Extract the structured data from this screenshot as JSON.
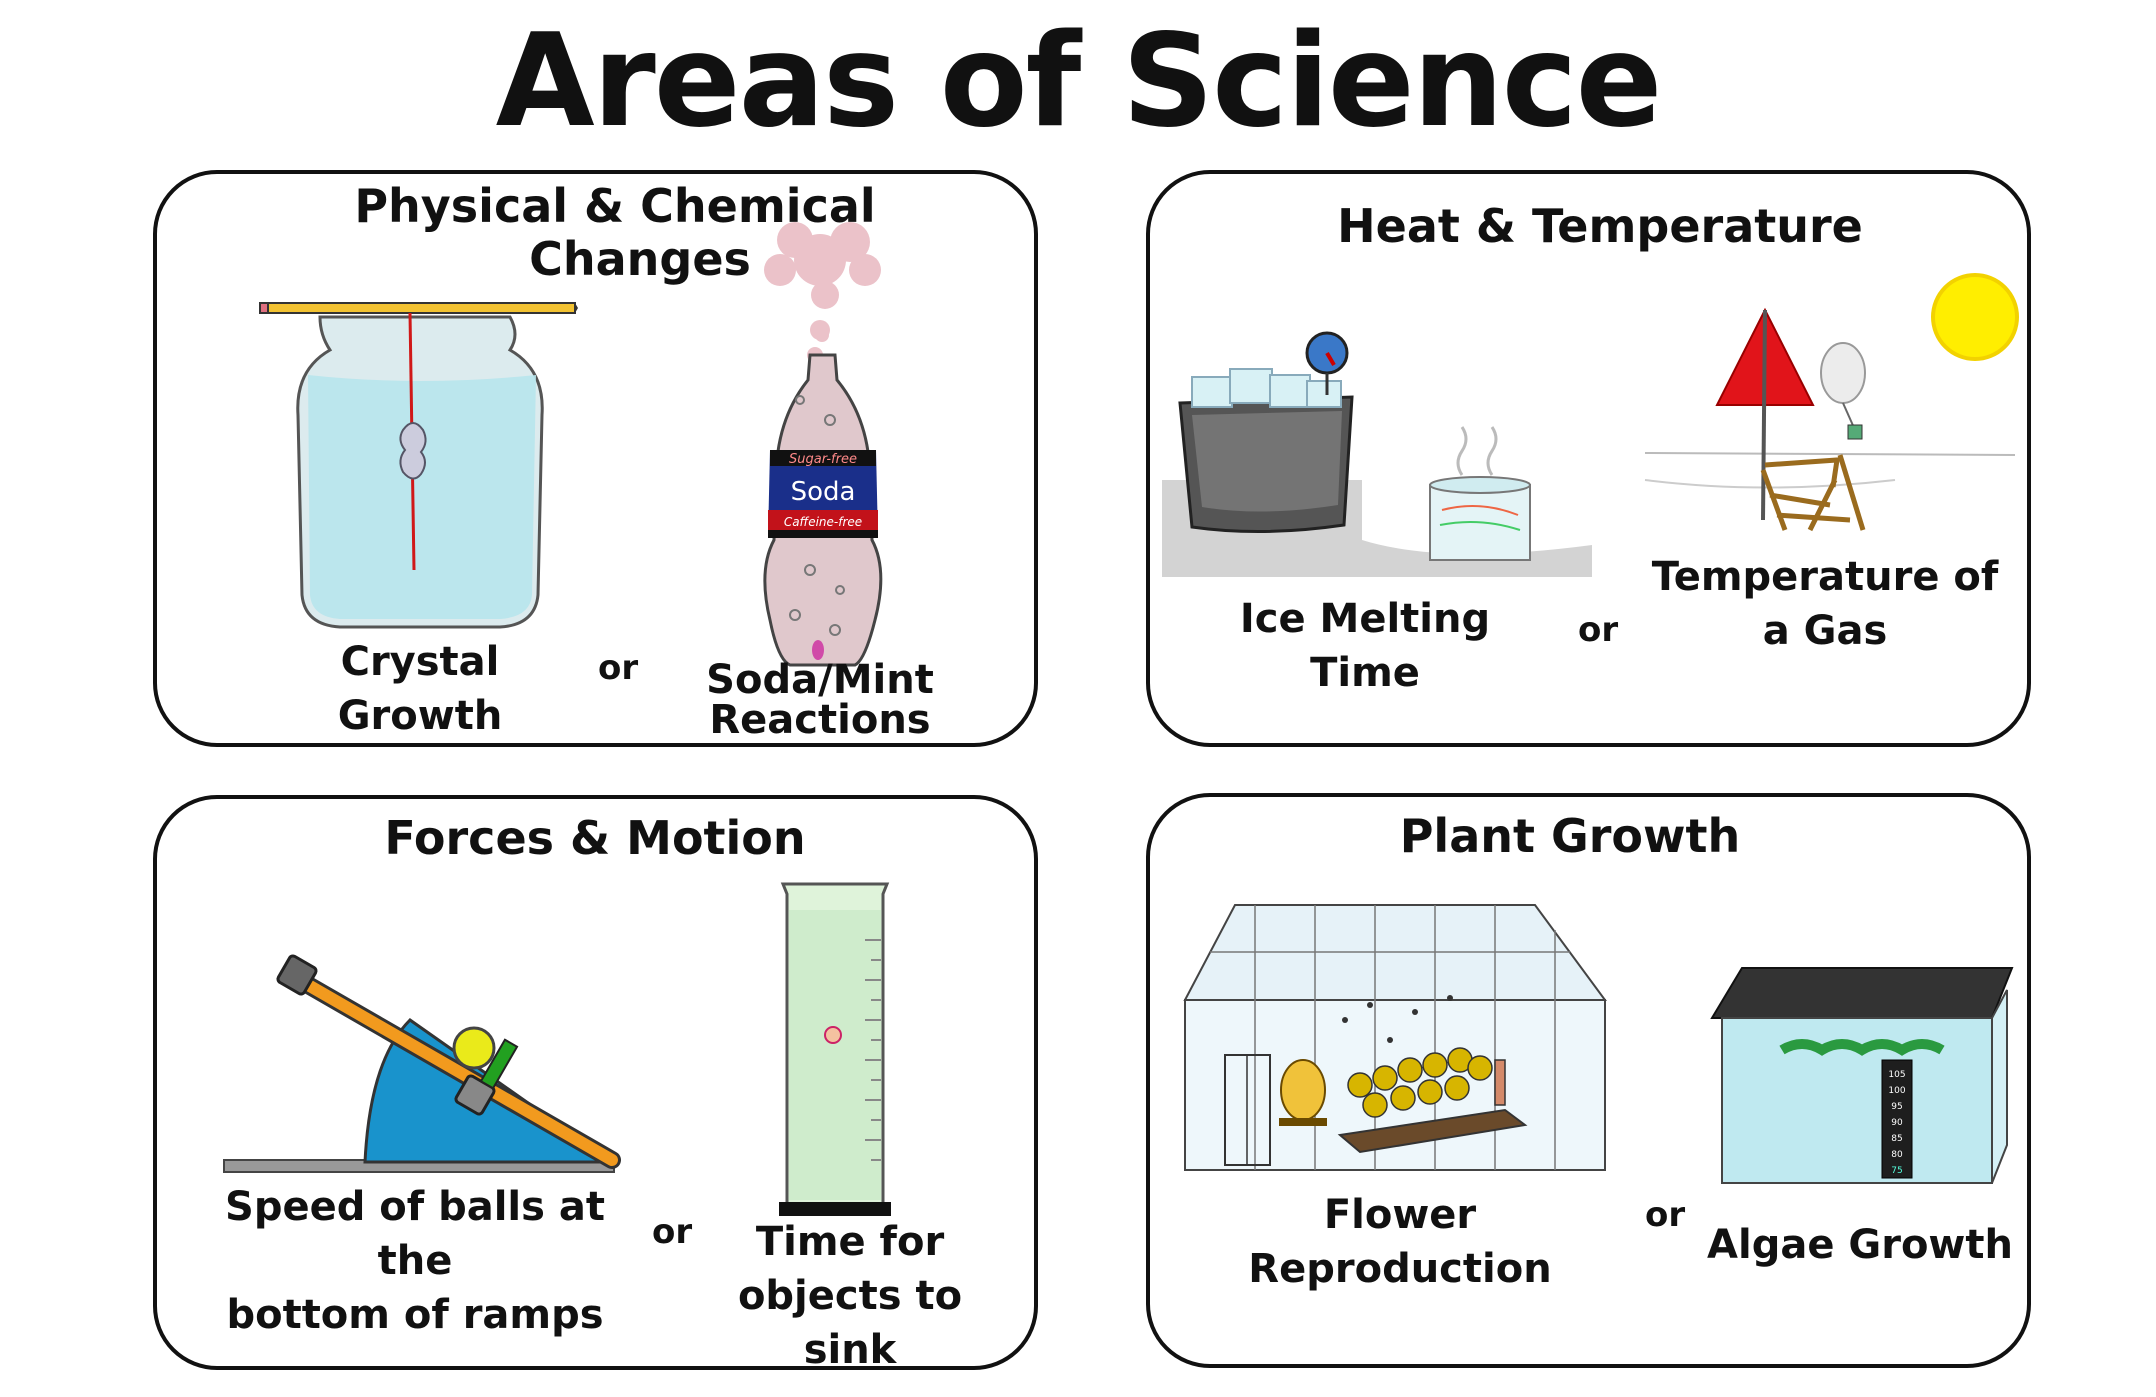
{
  "title": "Areas of Science",
  "panels": {
    "physical": {
      "title_line1": "Physical & Chemical",
      "title_line2": "Changes",
      "option1": "Crystal Growth",
      "or": "or",
      "option2_line1": "Soda/Mint",
      "option2_line2": "Reactions",
      "bottle_label_top": "Sugar-free",
      "bottle_label_mid": "Soda",
      "bottle_label_bot": "Caffeine-free"
    },
    "heat": {
      "title": "Heat & Temperature",
      "option1": "Ice Melting Time",
      "or": "or",
      "option2_line1": "Temperature of",
      "option2_line2": "a Gas"
    },
    "forces": {
      "title": "Forces & Motion",
      "option1_line1": "Speed of balls at the",
      "option1_line2": "bottom of ramps",
      "or": "or",
      "option2_line1": "Time for",
      "option2_line2": "objects to sink"
    },
    "plant": {
      "title": "Plant Growth",
      "option1": "Flower Reproduction",
      "or": "or",
      "option2": "Algae Growth",
      "thermometer_ticks": [
        "105",
        "100",
        "95",
        "90",
        "85",
        "80",
        "75"
      ]
    }
  }
}
